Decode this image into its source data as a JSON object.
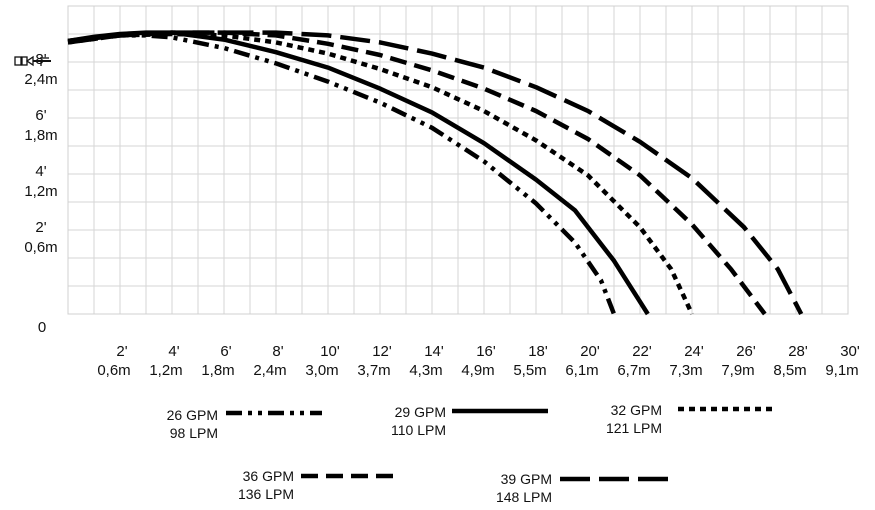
{
  "chart_data": {
    "type": "line",
    "grid": true,
    "legend_placement": "bottom",
    "xlim": [
      0,
      30
    ],
    "ylim": [
      0,
      11
    ],
    "x_ticks": [
      {
        "value": 2,
        "ft": "2'",
        "m": "0,6m"
      },
      {
        "value": 4,
        "ft": "4'",
        "m": "1,2m"
      },
      {
        "value": 6,
        "ft": "6'",
        "m": "1,8m"
      },
      {
        "value": 8,
        "ft": "8'",
        "m": "2,4m"
      },
      {
        "value": 10,
        "ft": "10'",
        "m": "3,0m"
      },
      {
        "value": 12,
        "ft": "12'",
        "m": "3,7m"
      },
      {
        "value": 14,
        "ft": "14'",
        "m": "4,3m"
      },
      {
        "value": 16,
        "ft": "16'",
        "m": "4,9m"
      },
      {
        "value": 18,
        "ft": "18'",
        "m": "5,5m"
      },
      {
        "value": 20,
        "ft": "20'",
        "m": "6,1m"
      },
      {
        "value": 22,
        "ft": "22'",
        "m": "6,7m"
      },
      {
        "value": 24,
        "ft": "24'",
        "m": "7,3m"
      },
      {
        "value": 26,
        "ft": "26'",
        "m": "7,9m"
      },
      {
        "value": 28,
        "ft": "28'",
        "m": "8,5m"
      },
      {
        "value": 30,
        "ft": "30'",
        "m": "9,1m"
      }
    ],
    "y_ticks": [
      {
        "value": 0,
        "ft": "0",
        "m": ""
      },
      {
        "value": 2,
        "ft": "2'",
        "m": "0,6m"
      },
      {
        "value": 4,
        "ft": "4'",
        "m": "1,2m"
      },
      {
        "value": 6,
        "ft": "6'",
        "m": "1,8m"
      },
      {
        "value": 8,
        "ft": "8'",
        "m": "2,4m"
      }
    ],
    "series": [
      {
        "name": "26 GPM",
        "name2": "98 LPM",
        "style": "dash-dot-dot",
        "x": [
          0,
          1,
          2,
          3,
          4,
          6,
          8,
          10,
          12,
          14,
          16,
          18,
          19.5,
          20.5,
          21
        ],
        "y": [
          9.75,
          9.88,
          9.95,
          9.95,
          9.88,
          9.5,
          8.95,
          8.3,
          7.55,
          6.65,
          5.45,
          3.95,
          2.55,
          1.2,
          0
        ]
      },
      {
        "name": "29 GPM",
        "name2": "110 LPM",
        "style": "solid",
        "x": [
          0,
          1,
          2,
          3,
          4,
          6,
          8,
          10,
          12,
          14,
          16,
          18,
          19.5,
          21,
          22.3
        ],
        "y": [
          9.75,
          9.9,
          10.0,
          10.05,
          10.05,
          9.8,
          9.35,
          8.8,
          8.05,
          7.2,
          6.1,
          4.8,
          3.7,
          1.9,
          0
        ]
      },
      {
        "name": "32 GPM",
        "name2": "121 LPM",
        "style": "dot",
        "x": [
          0,
          2,
          4,
          6,
          8,
          10,
          12,
          14,
          16,
          18,
          20,
          22,
          23.2,
          24
        ],
        "y": [
          9.7,
          9.95,
          10.0,
          9.95,
          9.7,
          9.3,
          8.75,
          8.1,
          7.25,
          6.2,
          4.95,
          3.1,
          1.6,
          0
        ]
      },
      {
        "name": "36 GPM",
        "name2": "136 LPM",
        "style": "dash",
        "x": [
          0,
          2,
          4,
          6,
          8,
          10,
          12,
          14,
          16,
          18,
          20,
          22,
          24,
          25.5,
          26.8
        ],
        "y": [
          9.75,
          9.95,
          10.05,
          10.05,
          9.95,
          9.65,
          9.25,
          8.7,
          8.05,
          7.25,
          6.25,
          4.95,
          3.2,
          1.6,
          0
        ]
      },
      {
        "name": "39 GPM",
        "name2": "148 LPM",
        "style": "long-dash",
        "x": [
          0,
          2,
          4,
          6,
          8,
          10,
          12,
          14,
          16,
          18,
          20,
          22,
          24,
          26,
          27.3,
          28.2
        ],
        "y": [
          9.7,
          9.95,
          10.05,
          10.05,
          10.05,
          9.95,
          9.7,
          9.3,
          8.8,
          8.1,
          7.25,
          6.15,
          4.85,
          3.1,
          1.6,
          0
        ]
      }
    ]
  }
}
